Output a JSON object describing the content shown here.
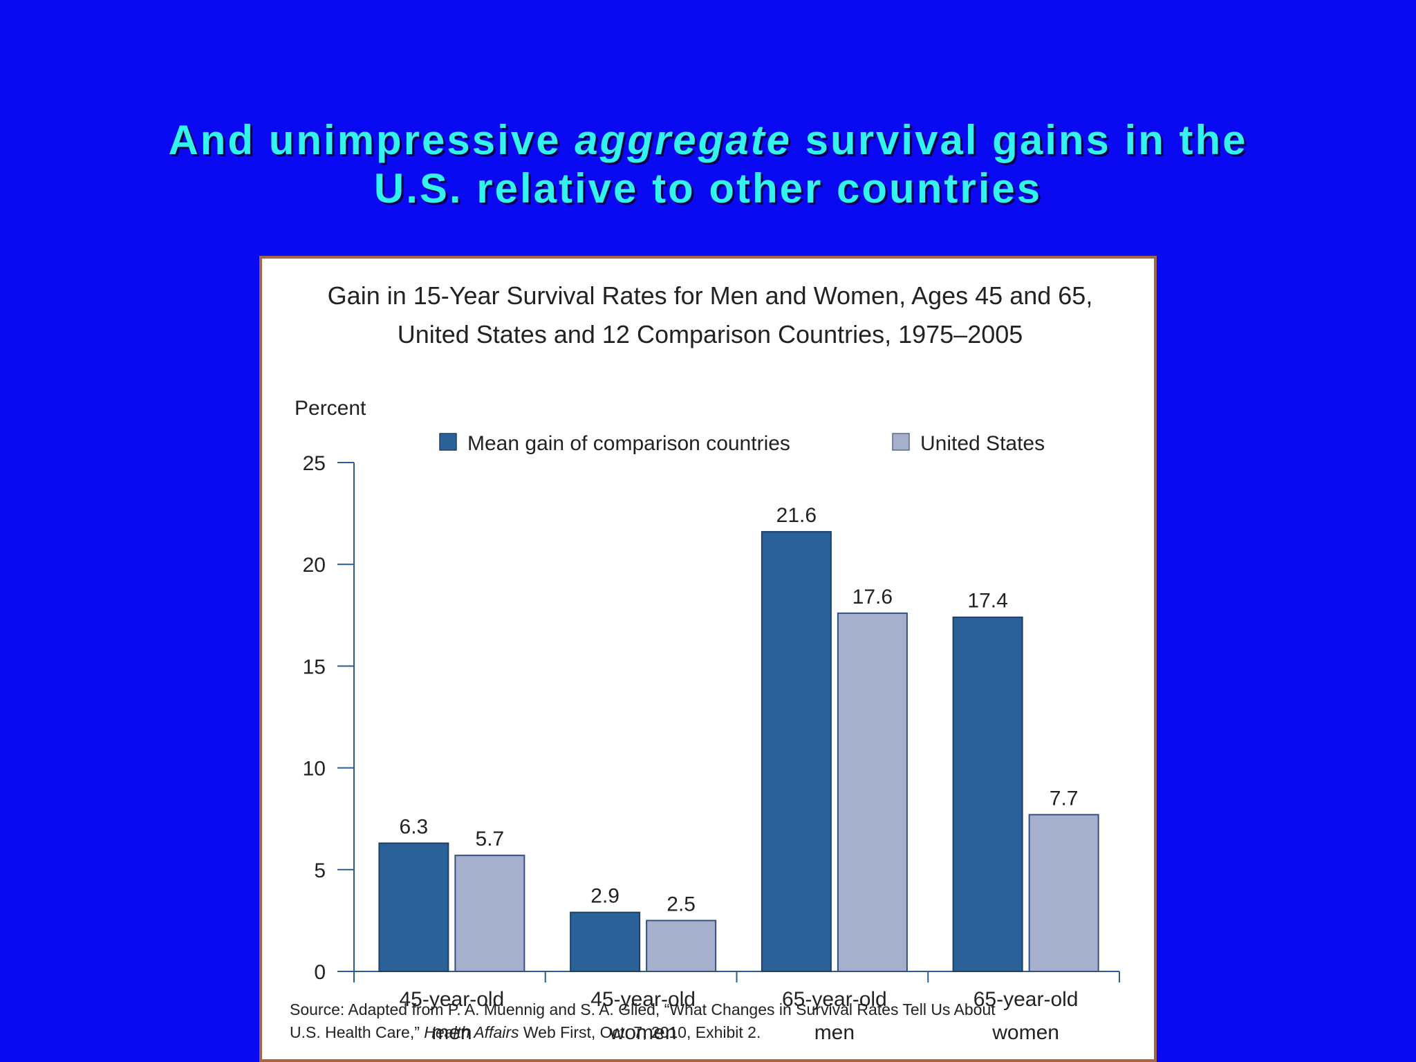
{
  "slide": {
    "title_part1": "And unimpressive ",
    "title_emphasis": "aggregate",
    "title_part2": " survival gains in the",
    "title_line2": "U.S. relative to other countries"
  },
  "colors": {
    "background": "#0a0af2",
    "title": "#33f2f0",
    "series_comparison": "#2a6199",
    "series_us": "#a6afcc",
    "panel_border": "#a0684a"
  },
  "chart_data": {
    "type": "bar",
    "title_line1": "Gain in 15-Year Survival Rates for Men and Women, Ages 45 and 65,",
    "title_line2": "United States and 12 Comparison Countries, 1975–2005",
    "ylabel": "Percent",
    "ylim": [
      0,
      25
    ],
    "yticks": [
      0,
      5,
      10,
      15,
      20,
      25
    ],
    "grid": false,
    "legend_position": "top",
    "categories": [
      [
        "45-year-old",
        "men"
      ],
      [
        "45-year-old",
        "women"
      ],
      [
        "65-year-old",
        "men"
      ],
      [
        "65-year-old",
        "women"
      ]
    ],
    "series": [
      {
        "name": "Mean gain of comparison countries",
        "values": [
          6.3,
          2.9,
          21.6,
          17.4
        ],
        "labels": [
          "6.3",
          "2.9",
          "21.6",
          "17.4"
        ]
      },
      {
        "name": "United States",
        "values": [
          5.7,
          2.5,
          17.6,
          7.7
        ],
        "labels": [
          "5.7",
          "2.5",
          "17.6",
          "7.7"
        ]
      }
    ],
    "source_line1": "Source: Adapted from P. A. Muennig and S. A. Glied, “What Changes in Survival Rates Tell Us About",
    "source_line2_part1": "U.S. Health Care,” ",
    "source_line2_italic": "Health Affairs",
    "source_line2_part2": " Web First, Oct. 7, 2010, Exhibit 2."
  }
}
